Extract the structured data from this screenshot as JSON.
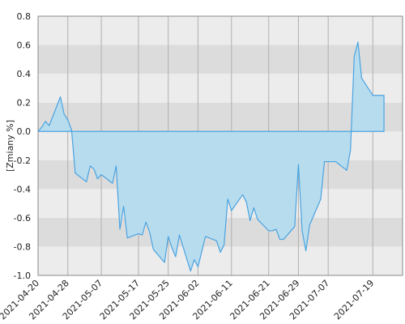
{
  "colors": {
    "band_light": "#ececec",
    "band_dark": "#dcdcdc",
    "area_fill": "#b7dcee",
    "line": "#4ba3e0",
    "axis": "#888888"
  },
  "chart_data": {
    "type": "area",
    "ylabel": "[Zmiany %]",
    "ylim": [
      -1.0,
      0.8
    ],
    "yticks": [
      -1.0,
      -0.8,
      -0.6,
      -0.4,
      -0.2,
      0.0,
      0.2,
      0.4,
      0.6,
      0.8
    ],
    "ytick_labels": [
      "-1.0",
      "-0.8",
      "-0.6",
      "-0.4",
      "-0.2",
      "0.0",
      "0.2",
      "0.4",
      "0.6",
      "0.8"
    ],
    "xlim": [
      "2021-04-20",
      "2021-07-27"
    ],
    "xticks": [
      "2021-04-20",
      "2021-04-28",
      "2021-05-07",
      "2021-05-17",
      "2021-05-25",
      "2021-06-02",
      "2021-06-11",
      "2021-06-21",
      "2021-06-29",
      "2021-07-07",
      "2021-07-19"
    ],
    "grid": true,
    "series": [
      {
        "x": [
          "2021-04-20",
          "2021-04-21",
          "2021-04-22",
          "2021-04-23",
          "2021-04-26",
          "2021-04-27",
          "2021-04-28",
          "2021-04-29",
          "2021-04-30",
          "2021-05-03",
          "2021-05-04",
          "2021-05-05",
          "2021-05-06",
          "2021-05-07",
          "2021-05-10",
          "2021-05-11",
          "2021-05-12",
          "2021-05-13",
          "2021-05-14",
          "2021-05-17",
          "2021-05-18",
          "2021-05-19",
          "2021-05-20",
          "2021-05-21",
          "2021-05-24",
          "2021-05-25",
          "2021-05-26",
          "2021-05-27",
          "2021-05-28",
          "2021-05-31",
          "2021-06-01",
          "2021-06-02",
          "2021-06-04",
          "2021-06-07",
          "2021-06-08",
          "2021-06-09",
          "2021-06-10",
          "2021-06-11",
          "2021-06-14",
          "2021-06-15",
          "2021-06-16",
          "2021-06-17",
          "2021-06-18",
          "2021-06-21",
          "2021-06-22",
          "2021-06-23",
          "2021-06-24",
          "2021-06-25",
          "2021-06-28",
          "2021-06-29",
          "2021-06-30",
          "2021-07-01",
          "2021-07-02",
          "2021-07-05",
          "2021-07-06",
          "2021-07-07",
          "2021-07-08",
          "2021-07-09",
          "2021-07-12",
          "2021-07-13",
          "2021-07-14",
          "2021-07-15",
          "2021-07-16",
          "2021-07-19",
          "2021-07-20",
          "2021-07-21",
          "2021-07-22"
        ],
        "values": [
          0.0,
          0.03,
          0.07,
          0.04,
          0.24,
          0.12,
          0.08,
          0.01,
          -0.29,
          -0.35,
          -0.24,
          -0.26,
          -0.33,
          -0.3,
          -0.36,
          -0.24,
          -0.68,
          -0.52,
          -0.74,
          -0.71,
          -0.72,
          -0.63,
          -0.7,
          -0.82,
          -0.91,
          -0.73,
          -0.81,
          -0.87,
          -0.72,
          -0.97,
          -0.89,
          -0.94,
          -0.73,
          -0.76,
          -0.84,
          -0.79,
          -0.47,
          -0.55,
          -0.44,
          -0.49,
          -0.62,
          -0.53,
          -0.61,
          -0.69,
          -0.69,
          -0.68,
          -0.75,
          -0.75,
          -0.66,
          -0.23,
          -0.69,
          -0.83,
          -0.65,
          -0.47,
          -0.21,
          -0.21,
          -0.21,
          -0.21,
          -0.27,
          -0.13,
          0.52,
          0.62,
          0.37,
          0.25,
          0.25,
          0.25,
          0.25
        ]
      }
    ]
  }
}
